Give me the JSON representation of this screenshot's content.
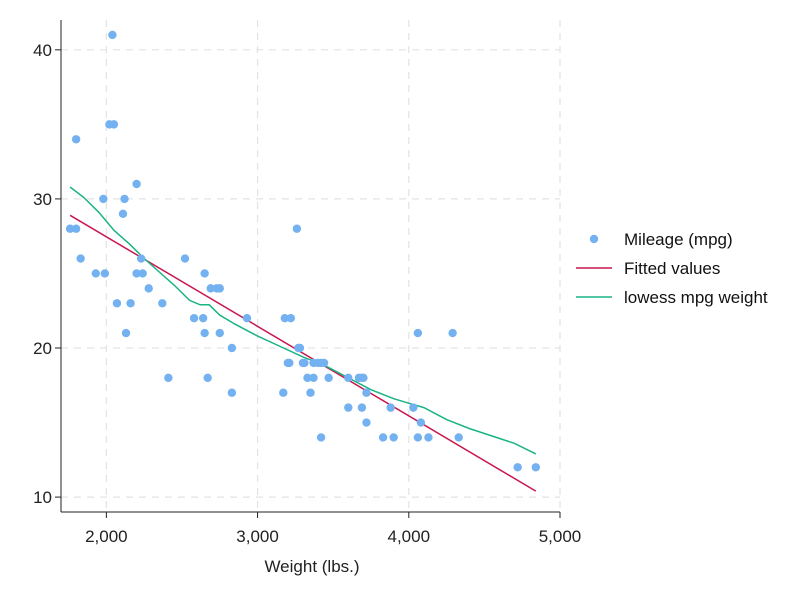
{
  "chart_data": {
    "type": "scatter",
    "title": "",
    "xlabel": "Weight (lbs.)",
    "ylabel": "",
    "xlim": [
      1700,
      5000
    ],
    "ylim": [
      9,
      42
    ],
    "x_ticks": [
      2000,
      3000,
      4000,
      5000
    ],
    "x_tick_labels": [
      "2,000",
      "3,000",
      "4,000",
      "5,000"
    ],
    "y_ticks": [
      10,
      20,
      30,
      40
    ],
    "y_tick_labels": [
      "10",
      "20",
      "30",
      "40"
    ],
    "grid": true,
    "legend_position": "right",
    "colors": {
      "scatter": "#74b1f0",
      "fitted": "#c8174f",
      "lowess": "#1ab386"
    },
    "series": [
      {
        "name": "Mileage (mpg)",
        "kind": "scatter",
        "points": [
          [
            2040,
            41
          ],
          [
            1800,
            34
          ],
          [
            2020,
            35
          ],
          [
            2050,
            35
          ],
          [
            2200,
            31
          ],
          [
            1980,
            30
          ],
          [
            2120,
            30
          ],
          [
            2110,
            29
          ],
          [
            1760,
            28
          ],
          [
            1800,
            28
          ],
          [
            3260,
            28
          ],
          [
            1830,
            26
          ],
          [
            2230,
            26
          ],
          [
            2520,
            26
          ],
          [
            1930,
            25
          ],
          [
            1990,
            25
          ],
          [
            2200,
            25
          ],
          [
            2240,
            25
          ],
          [
            2650,
            25
          ],
          [
            2280,
            24
          ],
          [
            2690,
            24
          ],
          [
            2730,
            24
          ],
          [
            2750,
            24
          ],
          [
            2070,
            23
          ],
          [
            2160,
            23
          ],
          [
            2370,
            23
          ],
          [
            2580,
            22
          ],
          [
            2640,
            22
          ],
          [
            2930,
            22
          ],
          [
            3180,
            22
          ],
          [
            3220,
            22
          ],
          [
            2130,
            21
          ],
          [
            2650,
            21
          ],
          [
            2750,
            21
          ],
          [
            4060,
            21
          ],
          [
            4290,
            21
          ],
          [
            3270,
            20
          ],
          [
            2830,
            20
          ],
          [
            3280,
            20
          ],
          [
            3200,
            19
          ],
          [
            3210,
            19
          ],
          [
            3300,
            19
          ],
          [
            3310,
            19
          ],
          [
            3370,
            19
          ],
          [
            3400,
            19
          ],
          [
            3420,
            19
          ],
          [
            3440,
            19
          ],
          [
            2410,
            18
          ],
          [
            2670,
            18
          ],
          [
            3330,
            18
          ],
          [
            3370,
            18
          ],
          [
            3470,
            18
          ],
          [
            3600,
            18
          ],
          [
            3670,
            18
          ],
          [
            3690,
            18
          ],
          [
            3700,
            18
          ],
          [
            3170,
            17
          ],
          [
            2830,
            17
          ],
          [
            3350,
            17
          ],
          [
            3720,
            17
          ],
          [
            3600,
            16
          ],
          [
            3690,
            16
          ],
          [
            3880,
            16
          ],
          [
            4030,
            16
          ],
          [
            3720,
            15
          ],
          [
            4080,
            15
          ],
          [
            3420,
            14
          ],
          [
            3830,
            14
          ],
          [
            3900,
            14
          ],
          [
            4060,
            14
          ],
          [
            4130,
            14
          ],
          [
            4330,
            14
          ],
          [
            4720,
            12
          ],
          [
            4840,
            12
          ]
        ]
      },
      {
        "name": "Fitted values",
        "kind": "line",
        "points": [
          [
            1760,
            28.9
          ],
          [
            4840,
            10.4
          ]
        ]
      },
      {
        "name": "lowess mpg weight",
        "kind": "line",
        "points": [
          [
            1760,
            30.8
          ],
          [
            1850,
            30.1
          ],
          [
            1950,
            29.1
          ],
          [
            2050,
            27.9
          ],
          [
            2150,
            27.0
          ],
          [
            2250,
            26.0
          ],
          [
            2350,
            25.1
          ],
          [
            2450,
            24.2
          ],
          [
            2550,
            23.2
          ],
          [
            2620,
            22.9
          ],
          [
            2680,
            22.9
          ],
          [
            2750,
            22.2
          ],
          [
            2850,
            21.6
          ],
          [
            3000,
            20.8
          ],
          [
            3150,
            20.1
          ],
          [
            3300,
            19.4
          ],
          [
            3450,
            18.8
          ],
          [
            3600,
            18.0
          ],
          [
            3750,
            17.2
          ],
          [
            3900,
            16.6
          ],
          [
            4000,
            16.3
          ],
          [
            4100,
            16.0
          ],
          [
            4250,
            15.2
          ],
          [
            4400,
            14.6
          ],
          [
            4550,
            14.1
          ],
          [
            4700,
            13.6
          ],
          [
            4840,
            12.9
          ]
        ]
      }
    ]
  }
}
